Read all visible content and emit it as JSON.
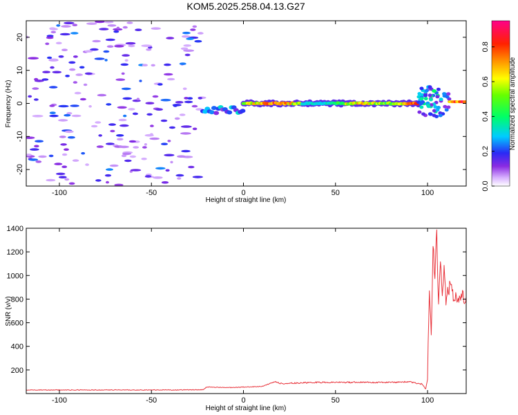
{
  "title": "KOM5.2025.258.04.13.G27",
  "colors": {
    "snr_line": "#e8323a",
    "axis": "#000000",
    "background": "#ffffff"
  },
  "chart_data": [
    {
      "type": "heatmap",
      "xlabel": "Height of straight line (km)",
      "ylabel": "Frequency (Hz)",
      "xlim": [
        -118,
        121
      ],
      "ylim": [
        -25,
        25
      ],
      "xticks": [
        -100,
        -50,
        0,
        50,
        100
      ],
      "yticks": [
        -20,
        -10,
        0,
        10,
        20
      ],
      "colorbar": {
        "label": "Normalized spectral amplitude",
        "range": [
          0,
          0.95
        ],
        "ticks": [
          0.0,
          0.2,
          0.4,
          0.6,
          0.8
        ],
        "colormap": "rainbow (white-purple-blue-cyan-green-yellow-orange-red-magenta)"
      },
      "features": [
        {
          "name": "noise",
          "x_range": [
            -118,
            -22
          ],
          "freq_range": [
            -25,
            25
          ],
          "amplitude": [
            0.05,
            0.25
          ]
        },
        {
          "name": "weak-band",
          "x_range": [
            -22,
            0
          ],
          "freq_center": -2,
          "amplitude": [
            0.1,
            0.35
          ]
        },
        {
          "name": "main-band",
          "x_range": [
            0,
            95
          ],
          "freq_center": 0,
          "amplitude": [
            0.3,
            0.95
          ]
        },
        {
          "name": "disturbance",
          "x_range": [
            95,
            112
          ],
          "freq_center": 0.5,
          "amplitude": [
            0.1,
            0.4
          ]
        },
        {
          "name": "end-band",
          "x_range": [
            112,
            121
          ],
          "freq_center": 0.5,
          "amplitude": [
            0.5,
            0.95
          ]
        }
      ]
    },
    {
      "type": "line",
      "xlabel": "Height of straight line (km)",
      "ylabel": "SNR (v/v)",
      "xlim": [
        -118,
        121
      ],
      "ylim": [
        0,
        1400
      ],
      "xticks": [
        -100,
        -50,
        0,
        50,
        100
      ],
      "yticks": [
        200,
        400,
        600,
        800,
        1000,
        1200,
        1400
      ],
      "series": [
        {
          "x": [
            -118,
            -100,
            -80,
            -60,
            -40,
            -22,
            -20,
            -10,
            0,
            10,
            17,
            20,
            30,
            40,
            50,
            60,
            70,
            80,
            90,
            97,
            99,
            100,
            101,
            102,
            103,
            104,
            105,
            106,
            107,
            108,
            109,
            110,
            112,
            115,
            118,
            121
          ],
          "y": [
            30,
            30,
            30,
            30,
            30,
            32,
            55,
            50,
            55,
            60,
            100,
            85,
            90,
            95,
            95,
            95,
            95,
            95,
            100,
            80,
            40,
            120,
            900,
            500,
            1250,
            1000,
            1400,
            700,
            1150,
            850,
            1050,
            800,
            900,
            810,
            820,
            820
          ]
        }
      ]
    }
  ]
}
